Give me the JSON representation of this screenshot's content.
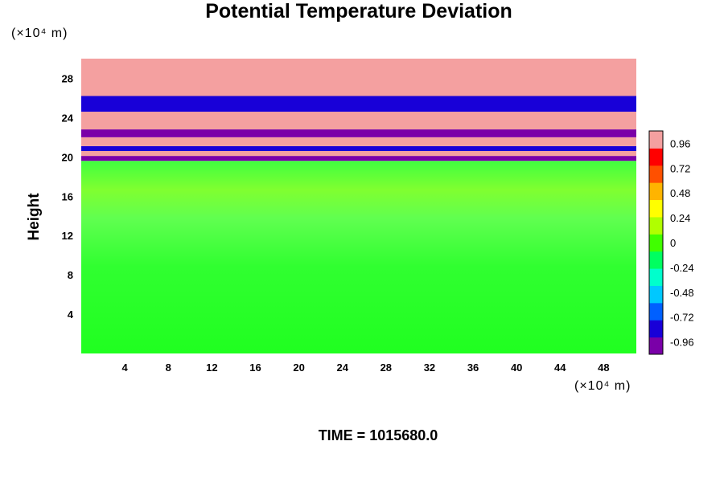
{
  "chart_data": {
    "type": "heatmap",
    "title": "Potential Temperature Deviation",
    "ylabel": "Height",
    "x_unit": "(×10⁴ m)",
    "y_unit": "(×10⁴ m)",
    "xlim": [
      0,
      51
    ],
    "ylim": [
      0,
      30
    ],
    "x_ticks": [
      4,
      8,
      12,
      16,
      20,
      24,
      28,
      32,
      36,
      40,
      44,
      48
    ],
    "y_ticks": [
      4,
      8,
      12,
      16,
      20,
      24,
      28
    ],
    "colorbar": {
      "range": [
        -1.08,
        1.08
      ],
      "ticks": [
        "0.96",
        "0.72",
        "0.48",
        "0.24",
        "0",
        "-0.24",
        "-0.48",
        "-0.72",
        "-0.96"
      ],
      "ticks_values": [
        0.96,
        0.72,
        0.48,
        0.24,
        0,
        -0.24,
        -0.48,
        -0.72,
        -0.96
      ],
      "colors": [
        "#7a00a8",
        "#1800d8",
        "#0060ff",
        "#00c8ff",
        "#00ffcc",
        "#00ff60",
        "#40ff00",
        "#b0ff00",
        "#ffff00",
        "#ffb400",
        "#ff5000",
        "#ff0000",
        "#f4a0a0"
      ]
    },
    "bands": [
      {
        "y": [
          19.6,
          20.1
        ],
        "value": -1.0
      },
      {
        "y": [
          20.1,
          20.6
        ],
        "value": 1.0
      },
      {
        "y": [
          20.6,
          21.1
        ],
        "value": -0.9
      },
      {
        "y": [
          21.1,
          22.0
        ],
        "value": 1.0
      },
      {
        "y": [
          22.0,
          22.8
        ],
        "value": -1.0
      },
      {
        "y": [
          22.8,
          24.6
        ],
        "value": 1.0
      },
      {
        "y": [
          24.6,
          26.2
        ],
        "value": -0.9
      },
      {
        "y": [
          26.2,
          30.0
        ],
        "value": 1.0
      }
    ],
    "lower_field_value": -0.05
  },
  "footer": {
    "time_label": "TIME = ",
    "time_value": "1015680.0"
  }
}
